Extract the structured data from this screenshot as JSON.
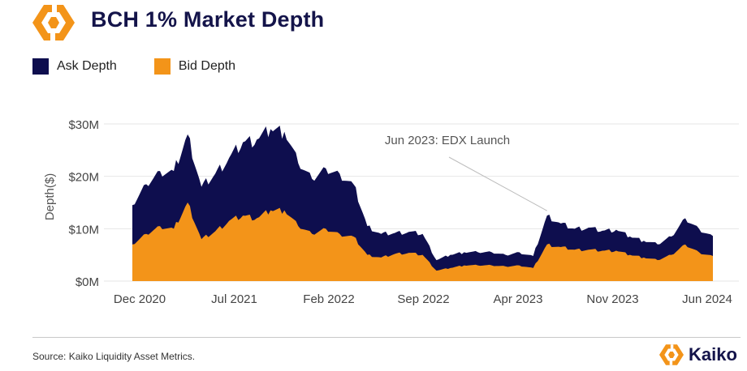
{
  "header": {
    "title": "BCH 1% Market Depth"
  },
  "footer": {
    "source": "Source: Kaiko Liquidity Asset Metrics.",
    "brand": "Kaiko"
  },
  "colors": {
    "ask": "#0e0e4e",
    "bid": "#f39419",
    "brand_orange": "#f39419",
    "brand_navy": "#14144a",
    "grid": "#e6e6e6"
  },
  "icons": {
    "header_logo": "kaiko-logo-icon",
    "footer_logo": "kaiko-logo-icon"
  },
  "chart_data": {
    "type": "area",
    "stacked": true,
    "title": "BCH 1% Market Depth",
    "xlabel": "",
    "ylabel": "Depth($)",
    "ylim": [
      0,
      32000000
    ],
    "yticks": [
      0,
      10000000,
      20000000,
      30000000
    ],
    "ytick_labels": [
      "$0M",
      "$10M",
      "$20M",
      "$30M"
    ],
    "xtick_labels": [
      "Dec 2020",
      "Jul 2021",
      "Feb 2022",
      "Sep 2022",
      "Apr 2023",
      "Nov 2023",
      "Jun 2024"
    ],
    "grid": "horizontal",
    "legend_position": "top-left",
    "x": [
      "2020-12",
      "2021-01",
      "2021-02",
      "2021-03",
      "2021-04",
      "2021-05",
      "2021-06",
      "2021-07",
      "2021-08",
      "2021-09",
      "2021-10",
      "2021-11",
      "2021-12",
      "2022-01",
      "2022-02",
      "2022-03",
      "2022-04",
      "2022-05",
      "2022-06",
      "2022-07",
      "2022-08",
      "2022-09",
      "2022-10",
      "2022-11",
      "2022-12",
      "2023-01",
      "2023-02",
      "2023-03",
      "2023-04",
      "2023-05",
      "2023-06",
      "2023-07",
      "2023-08",
      "2023-09",
      "2023-10",
      "2023-11",
      "2023-12",
      "2024-01",
      "2024-02",
      "2024-03",
      "2024-04",
      "2024-05",
      "2024-06"
    ],
    "series": [
      {
        "name": "Bid Depth",
        "values": [
          7000000,
          9000000,
          10500000,
          10000000,
          15000000,
          8000000,
          9500000,
          11500000,
          12500000,
          12000000,
          13500000,
          13500000,
          10500000,
          9000000,
          10000000,
          9000000,
          8500000,
          5000000,
          4500000,
          5200000,
          5400000,
          5000000,
          2000000,
          2500000,
          3000000,
          3000000,
          3000000,
          2800000,
          3000000,
          2500000,
          7000000,
          6500000,
          6000000,
          6000000,
          5800000,
          5800000,
          5000000,
          4500000,
          4000000,
          5000000,
          7000000,
          5500000,
          4800000
        ]
      },
      {
        "name": "Ask Depth",
        "values": [
          7500000,
          9500000,
          10500000,
          11000000,
          13000000,
          10000000,
          11000000,
          12000000,
          14000000,
          15000000,
          15500000,
          15000000,
          12000000,
          10500000,
          11500000,
          11500000,
          10000000,
          5500000,
          4500000,
          4000000,
          4000000,
          4000000,
          2000000,
          2500000,
          2500000,
          2500000,
          2500000,
          2200000,
          2500000,
          2300000,
          5500000,
          4500000,
          4000000,
          4200000,
          3800000,
          4000000,
          3500000,
          3200000,
          3000000,
          3500000,
          5000000,
          4500000,
          3800000
        ]
      }
    ],
    "annotations": [
      {
        "text": "Jun 2023: EDX Launch",
        "x": "2023-06"
      }
    ]
  }
}
